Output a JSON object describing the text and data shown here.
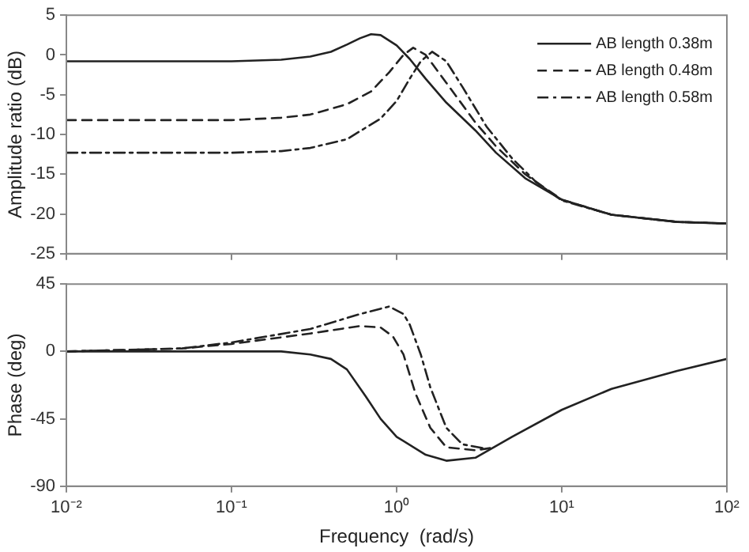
{
  "chart_data": [
    {
      "type": "line",
      "ylabel": "Amplitude ratio (dB)",
      "log": "x",
      "xlim": [
        0.01,
        100
      ],
      "xticks": [
        {
          "value": 0.01,
          "label": null
        },
        {
          "value": 0.1,
          "label": null
        },
        {
          "value": 1,
          "label": null
        },
        {
          "value": 10,
          "label": null
        },
        {
          "value": 100,
          "label": null
        }
      ],
      "tick_labels": "y",
      "ylim": [
        -25,
        5
      ],
      "yticks": [
        -25,
        -20,
        -15,
        -10,
        -5,
        0,
        5
      ],
      "grid": false,
      "legend": "top right",
      "marker": "none",
      "series": [
        {
          "name": "AB length 0.38m",
          "color": "#222222",
          "line_style": "solid",
          "x": [
            0.01,
            0.05,
            0.1,
            0.2,
            0.3,
            0.4,
            0.5,
            0.6,
            0.7,
            0.8,
            1,
            1.2,
            1.5,
            2,
            3,
            4,
            6,
            10,
            20,
            50,
            100
          ],
          "values": [
            -0.8,
            -0.8,
            -0.8,
            -0.6,
            -0.2,
            0.4,
            1.3,
            2.1,
            2.6,
            2.5,
            1.2,
            -0.5,
            -3,
            -6,
            -9.5,
            -12.3,
            -15.5,
            -18.2,
            -20.1,
            -21,
            -21.2
          ]
        },
        {
          "name": "AB length 0.48m",
          "color": "#222222",
          "line_style": "dashed",
          "x": [
            0.01,
            0.1,
            0.2,
            0.3,
            0.5,
            0.7,
            0.9,
            1.1,
            1.26,
            1.5,
            2,
            3,
            4,
            6,
            10,
            20,
            50,
            100
          ],
          "values": [
            -8.2,
            -8.2,
            -7.9,
            -7.5,
            -6.2,
            -4.6,
            -2.2,
            0,
            0.9,
            0,
            -3.5,
            -8.5,
            -11.5,
            -15,
            -18.2,
            -20.1,
            -21,
            -21.2
          ]
        },
        {
          "name": "AB length 0.58m",
          "color": "#222222",
          "line_style": "dashdot",
          "x": [
            0.01,
            0.1,
            0.2,
            0.3,
            0.5,
            0.8,
            1,
            1.2,
            1.4,
            1.64,
            2,
            2.5,
            3.5,
            5,
            7,
            10,
            20,
            50,
            100
          ],
          "values": [
            -12.3,
            -12.3,
            -12.1,
            -11.7,
            -10.6,
            -8,
            -5.8,
            -3,
            -0.8,
            0.4,
            -0.8,
            -4,
            -9,
            -13,
            -16,
            -18.3,
            -20.1,
            -21,
            -21.2
          ]
        }
      ]
    },
    {
      "type": "line",
      "xlabel": "Frequency  (rad/s)",
      "ylabel": "Phase (deg)",
      "log": "x",
      "xlim": [
        0.01,
        100
      ],
      "xticks": [
        {
          "value": 0.01,
          "label": "10⁻²"
        },
        {
          "value": 0.1,
          "label": "10⁻¹"
        },
        {
          "value": 1,
          "label": "10⁰"
        },
        {
          "value": 10,
          "label": "10¹"
        },
        {
          "value": 100,
          "label": "10²"
        }
      ],
      "ylim": [
        -90,
        45
      ],
      "yticks": [
        -90,
        -45,
        0,
        45
      ],
      "grid": false,
      "marker": "none",
      "series": [
        {
          "color": "#222222",
          "line_style": "solid",
          "x": [
            0.01,
            0.1,
            0.2,
            0.3,
            0.4,
            0.5,
            0.65,
            0.8,
            1,
            1.5,
            2,
            3,
            5,
            10,
            20,
            50,
            100
          ],
          "values": [
            0,
            0,
            0,
            -2,
            -5,
            -12,
            -30,
            -45,
            -57,
            -69,
            -73,
            -71,
            -57,
            -39,
            -25,
            -13,
            -5
          ]
        },
        {
          "color": "#222222",
          "line_style": "dashed",
          "x": [
            0.01,
            0.05,
            0.1,
            0.3,
            0.6,
            0.8,
            0.95,
            1.1,
            1.3,
            1.6,
            2,
            3,
            4
          ],
          "values": [
            0,
            2,
            5,
            12,
            17,
            16,
            10,
            -2,
            -28,
            -51,
            -64,
            -66,
            -64
          ]
        },
        {
          "color": "#222222",
          "line_style": "dashdot",
          "x": [
            0.01,
            0.05,
            0.1,
            0.3,
            0.6,
            0.9,
            1.1,
            1.2,
            1.4,
            1.6,
            2,
            2.5,
            3.5
          ],
          "values": [
            0,
            2,
            6,
            15,
            25,
            30,
            25,
            18,
            -2,
            -24,
            -51,
            -62,
            -65
          ]
        }
      ]
    }
  ]
}
